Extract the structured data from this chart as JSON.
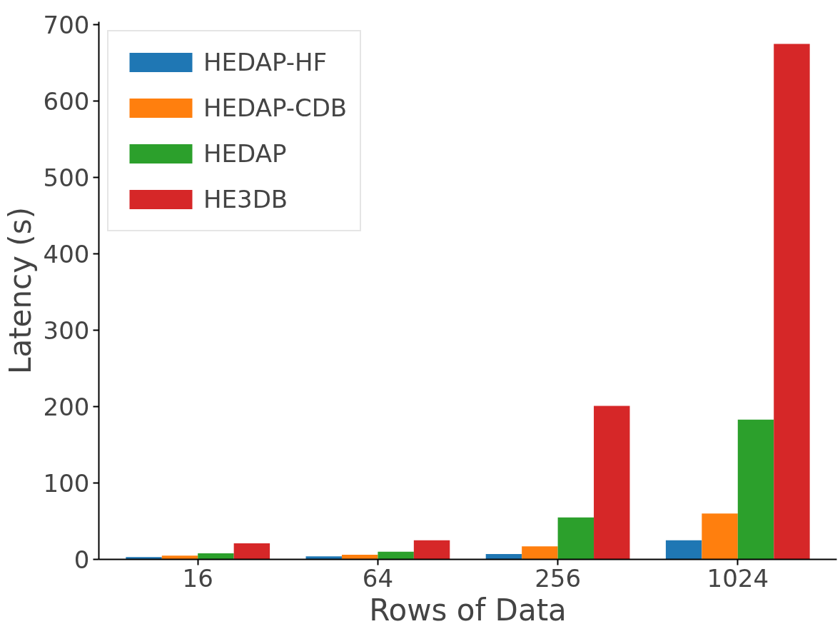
{
  "chart_data": {
    "type": "bar",
    "xlabel": "Rows of Data",
    "ylabel": "Latency (s)",
    "categories": [
      "16",
      "64",
      "256",
      "1024"
    ],
    "series": [
      {
        "name": "HEDAP-HF",
        "color": "#1f77b4",
        "values": [
          3,
          4,
          7,
          25
        ]
      },
      {
        "name": "HEDAP-CDB",
        "color": "#ff7f0e",
        "values": [
          5,
          6,
          17,
          60
        ]
      },
      {
        "name": "HEDAP",
        "color": "#2ca02c",
        "values": [
          8,
          10,
          55,
          183
        ]
      },
      {
        "name": "HE3DB",
        "color": "#d62728",
        "values": [
          21,
          25,
          201,
          675
        ]
      }
    ],
    "ylim": [
      0,
      704
    ],
    "yticks": [
      0,
      100,
      200,
      300,
      400,
      500,
      600,
      700
    ],
    "grid": false,
    "legend": "top left"
  }
}
